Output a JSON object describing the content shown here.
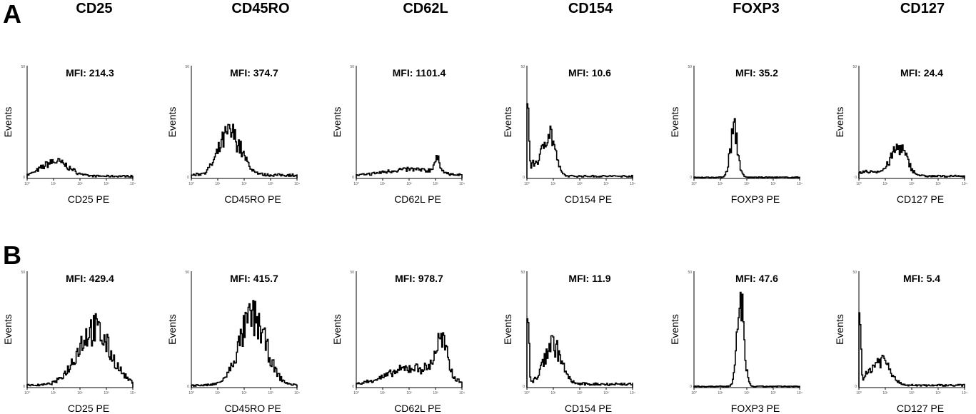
{
  "panel_labels": [
    "A",
    "B"
  ],
  "markers": [
    "CD25",
    "CD45RO",
    "CD62L",
    "CD154",
    "FOXP3",
    "CD127"
  ],
  "chart_data": [
    {
      "type": "line",
      "panel": "A",
      "ylabel": "Events",
      "x_scale": "log",
      "xlim": [
        1,
        10000
      ],
      "y_tick_labels": [
        "0",
        "50"
      ],
      "x_tick_labels": [
        "10⁰",
        "10¹",
        "10²",
        "10³",
        "10⁴"
      ],
      "line_color": "#000000",
      "histograms": [
        {
          "marker": "CD25",
          "annotation": "MFI: 214.3",
          "xlabel": "CD25 PE",
          "components": [
            {
              "center": 1.05,
              "width": 0.5,
              "height": 0.13
            }
          ],
          "baseline": 0.02
        },
        {
          "marker": "CD45RO",
          "annotation": "MFI: 374.7",
          "xlabel": "CD45RO PE",
          "components": [
            {
              "center": 1.45,
              "width": 0.42,
              "height": 0.37
            }
          ],
          "baseline": 0.03
        },
        {
          "marker": "CD62L",
          "annotation": "MFI: 1101.4",
          "xlabel": "CD62L PE",
          "components": [
            {
              "center": 3.05,
              "width": 0.13,
              "height": 0.11
            },
            {
              "center": 2.0,
              "width": 1.0,
              "height": 0.06
            }
          ],
          "baseline": 0.02
        },
        {
          "marker": "CD154",
          "annotation": "MFI: 10.6",
          "xlabel": "CD154 PE",
          "components": [
            {
              "center": 0.82,
              "width": 0.22,
              "height": 0.4
            },
            {
              "center": 0.02,
              "width": 0.04,
              "height": 0.6
            },
            {
              "center": 0.25,
              "width": 0.2,
              "height": 0.1
            }
          ],
          "baseline": 0.02
        },
        {
          "marker": "FOXP3",
          "annotation": "MFI: 35.2",
          "xlabel": "FOXP3 PE",
          "components": [
            {
              "center": 1.5,
              "width": 0.14,
              "height": 0.42
            }
          ],
          "baseline": 0.01
        },
        {
          "marker": "CD127",
          "annotation": "MFI: 24.4",
          "xlabel": "CD127 PE",
          "components": [
            {
              "center": 1.5,
              "width": 0.3,
              "height": 0.25
            },
            {
              "center": 0.4,
              "width": 0.5,
              "height": 0.04
            }
          ],
          "baseline": 0.02
        }
      ]
    },
    {
      "type": "line",
      "panel": "B",
      "ylabel": "Events",
      "x_scale": "log",
      "xlim": [
        1,
        10000
      ],
      "y_tick_labels": [
        "0",
        "50"
      ],
      "x_tick_labels": [
        "10⁰",
        "10¹",
        "10²",
        "10³",
        "10⁴"
      ],
      "line_color": "#000000",
      "histograms": [
        {
          "marker": "CD25",
          "annotation": "MFI: 429.4",
          "xlabel": "CD25 PE",
          "components": [
            {
              "center": 2.5,
              "width": 0.62,
              "height": 0.48
            }
          ],
          "baseline": 0.02
        },
        {
          "marker": "CD45RO",
          "annotation": "MFI: 415.7",
          "xlabel": "CD45RO PE",
          "components": [
            {
              "center": 2.3,
              "width": 0.5,
              "height": 0.58
            }
          ],
          "baseline": 0.02
        },
        {
          "marker": "CD62L",
          "annotation": "MFI: 978.7",
          "xlabel": "CD62L PE",
          "components": [
            {
              "center": 3.2,
              "width": 0.22,
              "height": 0.3
            },
            {
              "center": 2.2,
              "width": 1.0,
              "height": 0.15
            }
          ],
          "baseline": 0.02
        },
        {
          "marker": "CD154",
          "annotation": "MFI: 11.9",
          "xlabel": "CD154 PE",
          "components": [
            {
              "center": 0.95,
              "width": 0.32,
              "height": 0.35
            },
            {
              "center": 0.02,
              "width": 0.04,
              "height": 0.65
            }
          ],
          "baseline": 0.03
        },
        {
          "marker": "FOXP3",
          "annotation": "MFI: 47.6",
          "xlabel": "FOXP3 PE",
          "components": [
            {
              "center": 1.75,
              "width": 0.13,
              "height": 0.72
            }
          ],
          "baseline": 0.01
        },
        {
          "marker": "CD127",
          "annotation": "MFI: 5.4",
          "xlabel": "CD127 PE",
          "components": [
            {
              "center": 0.9,
              "width": 0.3,
              "height": 0.2
            },
            {
              "center": 0.02,
              "width": 0.04,
              "height": 0.6
            },
            {
              "center": 0.4,
              "width": 0.3,
              "height": 0.08
            }
          ],
          "baseline": 0.02
        }
      ]
    }
  ]
}
